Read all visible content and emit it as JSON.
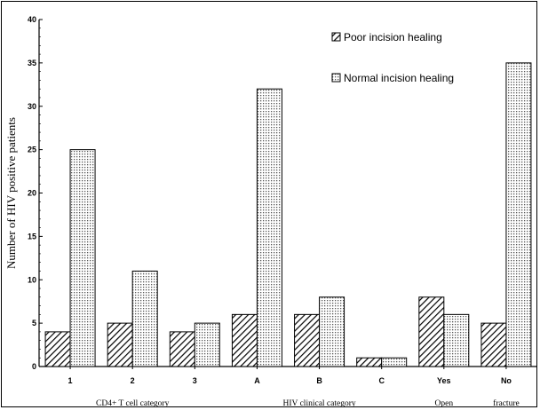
{
  "chart_data": {
    "type": "bar",
    "title": "",
    "xlabel": "",
    "ylabel": "Number of HIV positive patients",
    "ylim": [
      0,
      40
    ],
    "yticks": [
      0,
      5,
      10,
      15,
      20,
      25,
      30,
      35,
      40
    ],
    "grid": false,
    "legend_position": "top-right",
    "categories": [
      "1",
      "2",
      "3",
      "A",
      "B",
      "C",
      "Yes",
      "No"
    ],
    "group_labels": [
      {
        "label": "CD4+ T cell category",
        "categories": [
          "1",
          "2",
          "3"
        ]
      },
      {
        "label": "HIV clinical category",
        "categories": [
          "A",
          "B",
          "C"
        ]
      },
      {
        "label": "Open",
        "categories": [
          "Yes"
        ]
      },
      {
        "label": "fracture",
        "categories": [
          "No"
        ]
      }
    ],
    "series": [
      {
        "name": "Poor incision healing",
        "pattern": "diagonal-hatch",
        "values": [
          4,
          5,
          4,
          6,
          6,
          1,
          8,
          5
        ]
      },
      {
        "name": "Normal incision healing",
        "pattern": "dots",
        "values": [
          25,
          11,
          5,
          32,
          8,
          1,
          6,
          35
        ]
      }
    ],
    "colors": {
      "ink": "#000000",
      "background": "#ffffff"
    }
  }
}
